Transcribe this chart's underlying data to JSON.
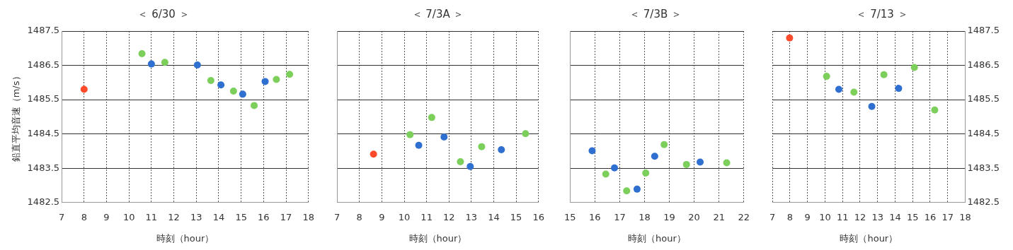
{
  "chart_data": [
    {
      "type": "scatter",
      "title": "＜ 6/30 ＞",
      "xlabel": "時刻（hour）",
      "ylabel": "鉛直平均音速（m/s）",
      "xlim": [
        7,
        18
      ],
      "xticks": [
        7,
        8,
        9,
        10,
        11,
        12,
        13,
        14,
        15,
        16,
        17,
        18
      ],
      "ylim": [
        1482.5,
        1487.5
      ],
      "yticks": [
        1482.5,
        1483.5,
        1484.5,
        1485.5,
        1486.5,
        1487.5
      ],
      "grid": true,
      "marker": "circle",
      "series": [
        {
          "color": "#ff4b2b",
          "x": [
            8.0
          ],
          "values": [
            1485.8
          ]
        },
        {
          "color": "#2e6fcf",
          "x": [
            11.0,
            13.05,
            14.1,
            15.07,
            16.07
          ],
          "values": [
            1486.54,
            1486.51,
            1485.93,
            1485.66,
            1486.03
          ]
        },
        {
          "color": "#7ccf5a",
          "x": [
            10.58,
            11.6,
            13.65,
            14.66,
            15.58,
            16.57,
            17.16
          ],
          "values": [
            1486.84,
            1486.59,
            1486.06,
            1485.75,
            1485.33,
            1486.09,
            1486.24
          ]
        }
      ]
    },
    {
      "type": "scatter",
      "title": "＜ 7/3A ＞",
      "xlabel": "時刻（hour）",
      "xlim": [
        7,
        16
      ],
      "xticks": [
        7,
        8,
        9,
        10,
        11,
        12,
        13,
        14,
        15,
        16
      ],
      "ylim": [
        1482.5,
        1487.5
      ],
      "yticks": [
        1482.5,
        1483.5,
        1484.5,
        1485.5,
        1486.5,
        1487.5
      ],
      "tick_labels": "x",
      "grid": true,
      "marker": "circle",
      "series": [
        {
          "color": "#ff4b2b",
          "x": [
            8.63
          ],
          "values": [
            1483.91
          ]
        },
        {
          "color": "#2e6fcf",
          "x": [
            10.65,
            11.78,
            12.95,
            14.34
          ],
          "values": [
            1484.17,
            1484.41,
            1483.55,
            1484.04
          ]
        },
        {
          "color": "#7ccf5a",
          "x": [
            10.26,
            11.23,
            12.51,
            13.46,
            15.42
          ],
          "values": [
            1484.48,
            1484.98,
            1483.69,
            1484.13,
            1484.51
          ]
        }
      ]
    },
    {
      "type": "scatter",
      "title": "＜ 7/3B ＞",
      "xlabel": "時刻（hour）",
      "xlim": [
        15,
        22
      ],
      "xticks": [
        15,
        16,
        17,
        18,
        19,
        20,
        21,
        22
      ],
      "ylim": [
        1482.5,
        1487.5
      ],
      "yticks": [
        1482.5,
        1483.5,
        1484.5,
        1485.5,
        1486.5,
        1487.5
      ],
      "tick_labels": "x",
      "grid": true,
      "marker": "circle",
      "series": [
        {
          "color": "#2e6fcf",
          "x": [
            15.89,
            16.79,
            17.7,
            18.41,
            20.24
          ],
          "values": [
            1484.01,
            1483.51,
            1482.89,
            1483.85,
            1483.68
          ]
        },
        {
          "color": "#7ccf5a",
          "x": [
            16.44,
            17.28,
            18.05,
            18.79,
            19.69,
            21.31
          ],
          "values": [
            1483.33,
            1482.84,
            1483.36,
            1484.19,
            1483.61,
            1483.66
          ]
        }
      ]
    },
    {
      "type": "scatter",
      "title": "＜ 7/13 ＞",
      "xlabel": "時刻（hour）",
      "xlim": [
        7,
        18
      ],
      "xticks": [
        7,
        8,
        9,
        10,
        11,
        12,
        13,
        14,
        15,
        16,
        17,
        18
      ],
      "y2lim": [
        1482.5,
        1487.5
      ],
      "y2ticks": [
        1482.5,
        1483.5,
        1484.5,
        1485.5,
        1486.5,
        1487.5
      ],
      "grid": true,
      "marker": "circle",
      "series": [
        {
          "color": "#ff4b2b",
          "axis": "y2",
          "x": [
            7.98
          ],
          "values": [
            1487.3
          ]
        },
        {
          "color": "#2e6fcf",
          "axis": "y2",
          "x": [
            10.79,
            12.67,
            14.2
          ],
          "values": [
            1485.8,
            1485.3,
            1485.83
          ]
        },
        {
          "color": "#7ccf5a",
          "axis": "y2",
          "x": [
            10.09,
            11.65,
            13.36,
            15.1,
            16.26
          ],
          "values": [
            1486.18,
            1485.72,
            1486.23,
            1486.44,
            1485.2
          ]
        }
      ]
    }
  ]
}
